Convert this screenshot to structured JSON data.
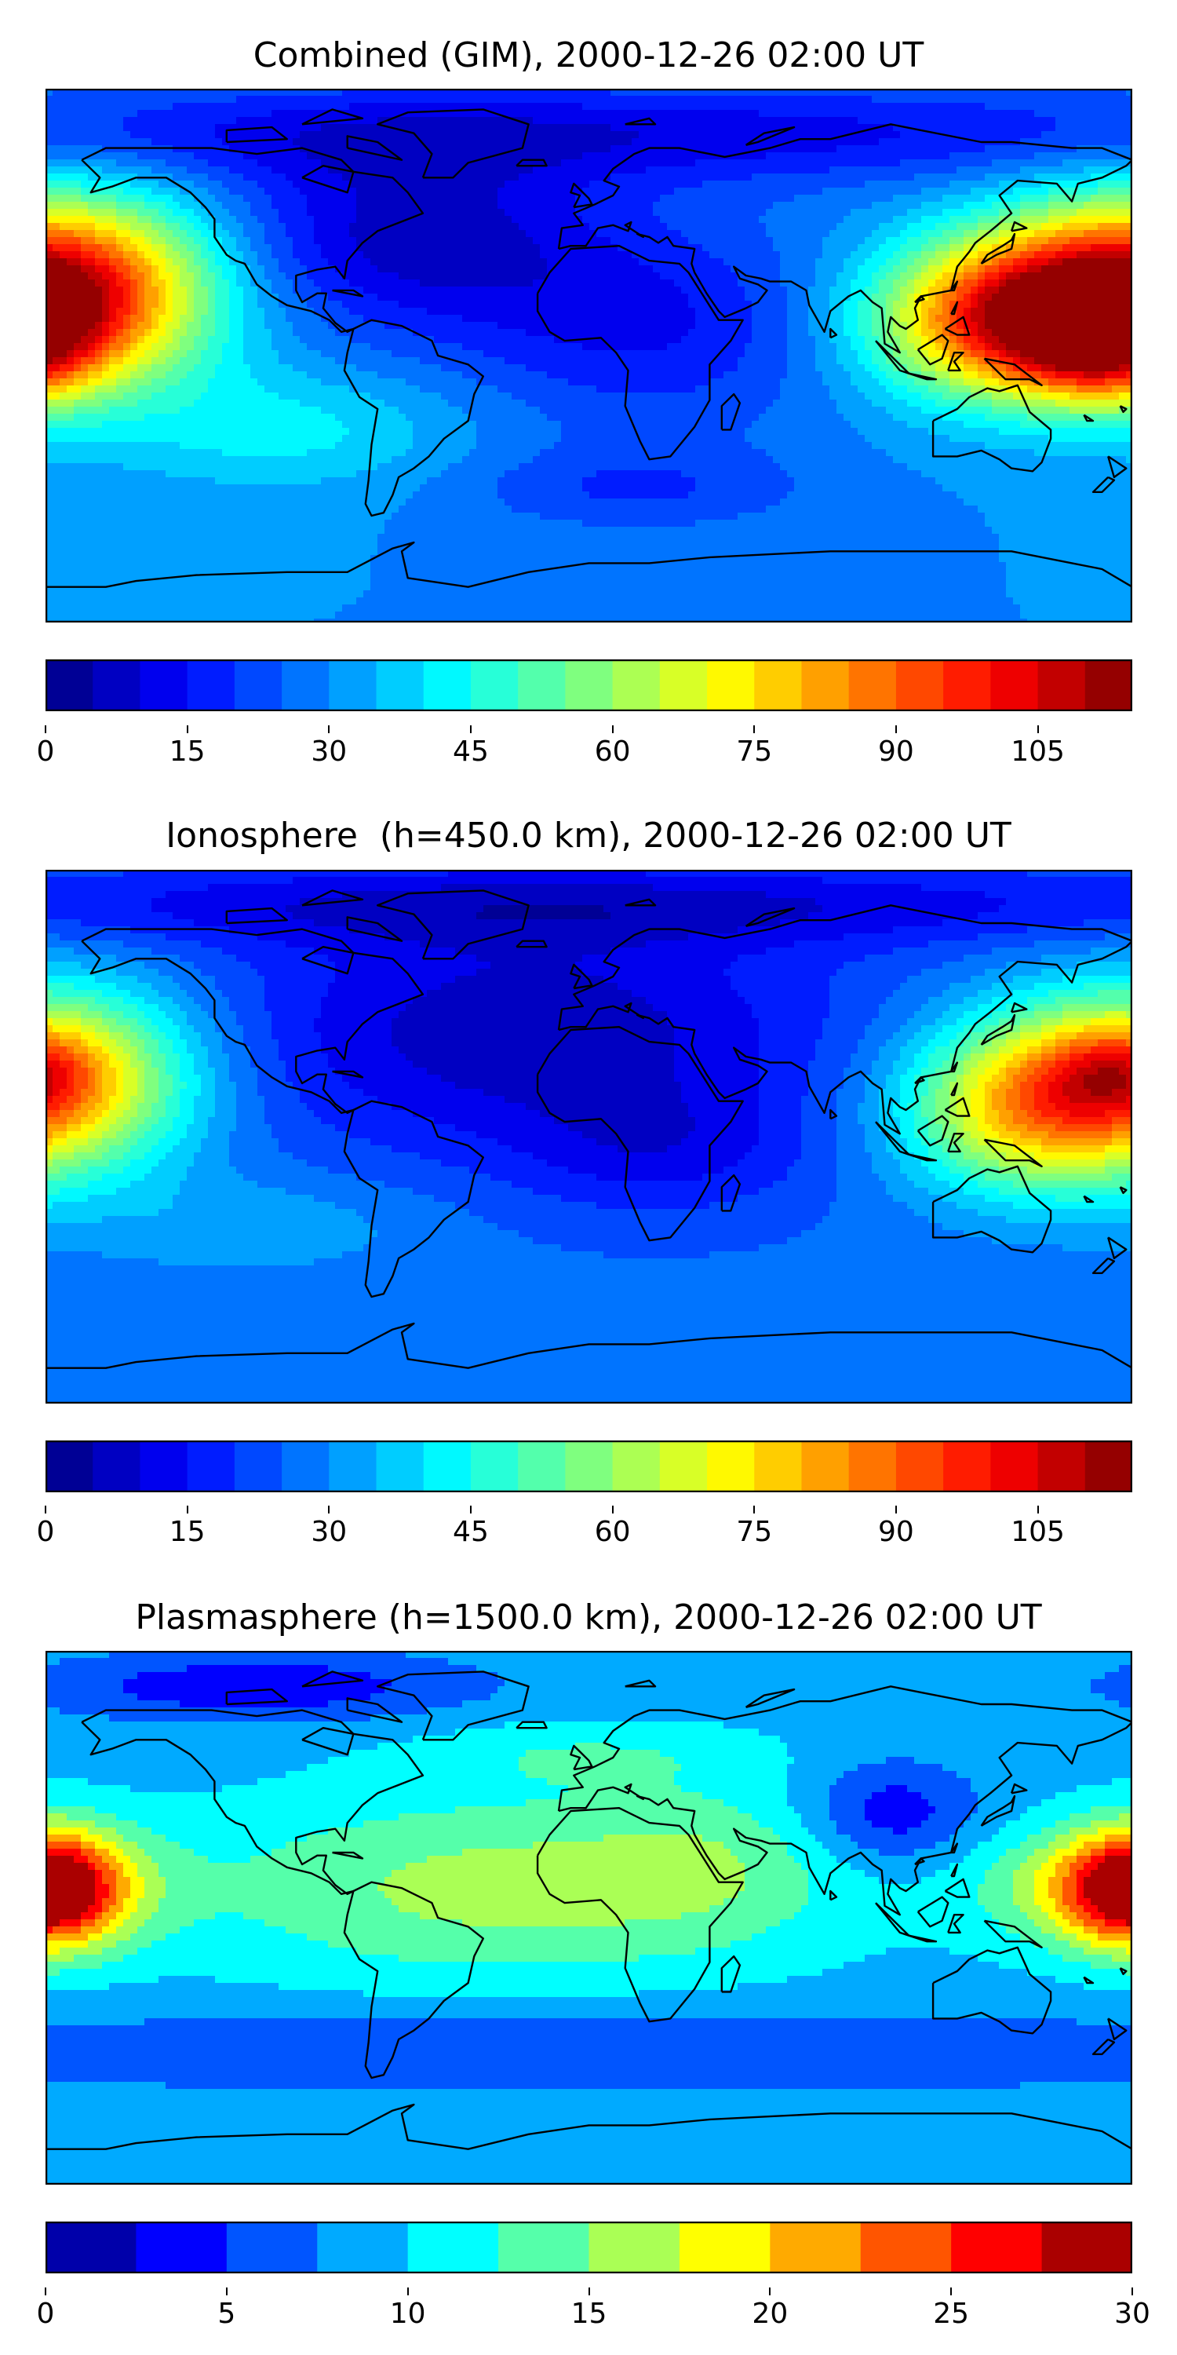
{
  "panels": [
    {
      "id": "combined",
      "title": "Combined (GIM), 2000-12-26 02:00 UT",
      "colorbar": {
        "min": 0,
        "max": 115,
        "step": 5,
        "ticks": [
          "0",
          "15",
          "30",
          "45",
          "60",
          "75",
          "90",
          "105"
        ],
        "tick_values": [
          0,
          15,
          30,
          45,
          60,
          75,
          90,
          105
        ]
      },
      "field": {
        "base": 30,
        "blobs": [
          {
            "lon": -175,
            "lat": 22,
            "amp": 75,
            "slon": 35,
            "slat": 22
          },
          {
            "lon": 140,
            "lat": 12,
            "amp": 62,
            "slon": 32,
            "slat": 18
          },
          {
            "lon": 170,
            "lat": 0,
            "amp": 25,
            "slon": 18,
            "slat": 12
          },
          {
            "lon": -60,
            "lat": 40,
            "amp": -22,
            "slon": 45,
            "slat": 22
          },
          {
            "lon": 20,
            "lat": 10,
            "amp": -15,
            "slon": 45,
            "slat": 25
          },
          {
            "lon": 0,
            "lat": 75,
            "amp": -18,
            "slon": 180,
            "slat": 12
          },
          {
            "lon": -100,
            "lat": -25,
            "amp": 12,
            "slon": 40,
            "slat": 14
          },
          {
            "lon": 15,
            "lat": -45,
            "amp": -10,
            "slon": 40,
            "slat": 10
          }
        ]
      }
    },
    {
      "id": "ionosphere",
      "title": "Ionosphere  (h=450.0 km), 2000-12-26 02:00 UT",
      "colorbar": {
        "min": 0,
        "max": 115,
        "step": 5,
        "ticks": [
          "0",
          "15",
          "30",
          "45",
          "60",
          "75",
          "90",
          "105"
        ],
        "tick_values": [
          0,
          15,
          30,
          45,
          60,
          75,
          90,
          105
        ]
      },
      "field": {
        "base": 26,
        "blobs": [
          {
            "lon": -175,
            "lat": 20,
            "amp": 50,
            "slon": 32,
            "slat": 22
          },
          {
            "lon": 145,
            "lat": 10,
            "amp": 45,
            "slon": 30,
            "slat": 20
          },
          {
            "lon": 175,
            "lat": 22,
            "amp": 15,
            "slon": 15,
            "slat": 10
          },
          {
            "lon": -20,
            "lat": 35,
            "amp": -20,
            "slon": 70,
            "slat": 28
          },
          {
            "lon": 25,
            "lat": -5,
            "amp": -10,
            "slon": 35,
            "slat": 15
          },
          {
            "lon": 0,
            "lat": 78,
            "amp": -15,
            "slon": 180,
            "slat": 10
          },
          {
            "lon": -110,
            "lat": -30,
            "amp": 8,
            "slon": 40,
            "slat": 12
          }
        ]
      }
    },
    {
      "id": "plasmasphere",
      "title": "Plasmasphere (h=1500.0 km), 2000-12-26 02:00 UT",
      "colorbar": {
        "min": 0,
        "max": 30,
        "step": 2.5,
        "ticks": [
          "0",
          "5",
          "10",
          "15",
          "20",
          "25",
          "30"
        ],
        "tick_values": [
          0,
          5,
          10,
          15,
          20,
          25,
          30
        ]
      },
      "field": {
        "base": 9,
        "blobs": [
          {
            "lon": -178,
            "lat": 10,
            "amp": 14,
            "slon": 15,
            "slat": 14
          },
          {
            "lon": 175,
            "lat": 10,
            "amp": 12,
            "slon": 28,
            "slat": 14
          },
          {
            "lon": -30,
            "lat": 10,
            "amp": 7,
            "slon": 70,
            "slat": 22
          },
          {
            "lon": 40,
            "lat": 20,
            "amp": 3,
            "slon": 30,
            "slat": 18
          },
          {
            "lon": 100,
            "lat": 35,
            "amp": -6,
            "slon": 20,
            "slat": 12
          },
          {
            "lon": -110,
            "lat": 78,
            "amp": -6,
            "slon": 50,
            "slat": 8
          },
          {
            "lon": 0,
            "lat": -45,
            "amp": -4,
            "slon": 180,
            "slat": 10
          },
          {
            "lon": 0,
            "lat": 55,
            "amp": 3,
            "slon": 40,
            "slat": 8
          }
        ]
      }
    }
  ],
  "colors": {
    "jet_stops": [
      "#00007f",
      "#0000ff",
      "#007fff",
      "#00ffff",
      "#7fff7f",
      "#ffff00",
      "#ff7f00",
      "#ff0000",
      "#7f0000"
    ],
    "coastline": "#000000",
    "frame": "#000000"
  }
}
